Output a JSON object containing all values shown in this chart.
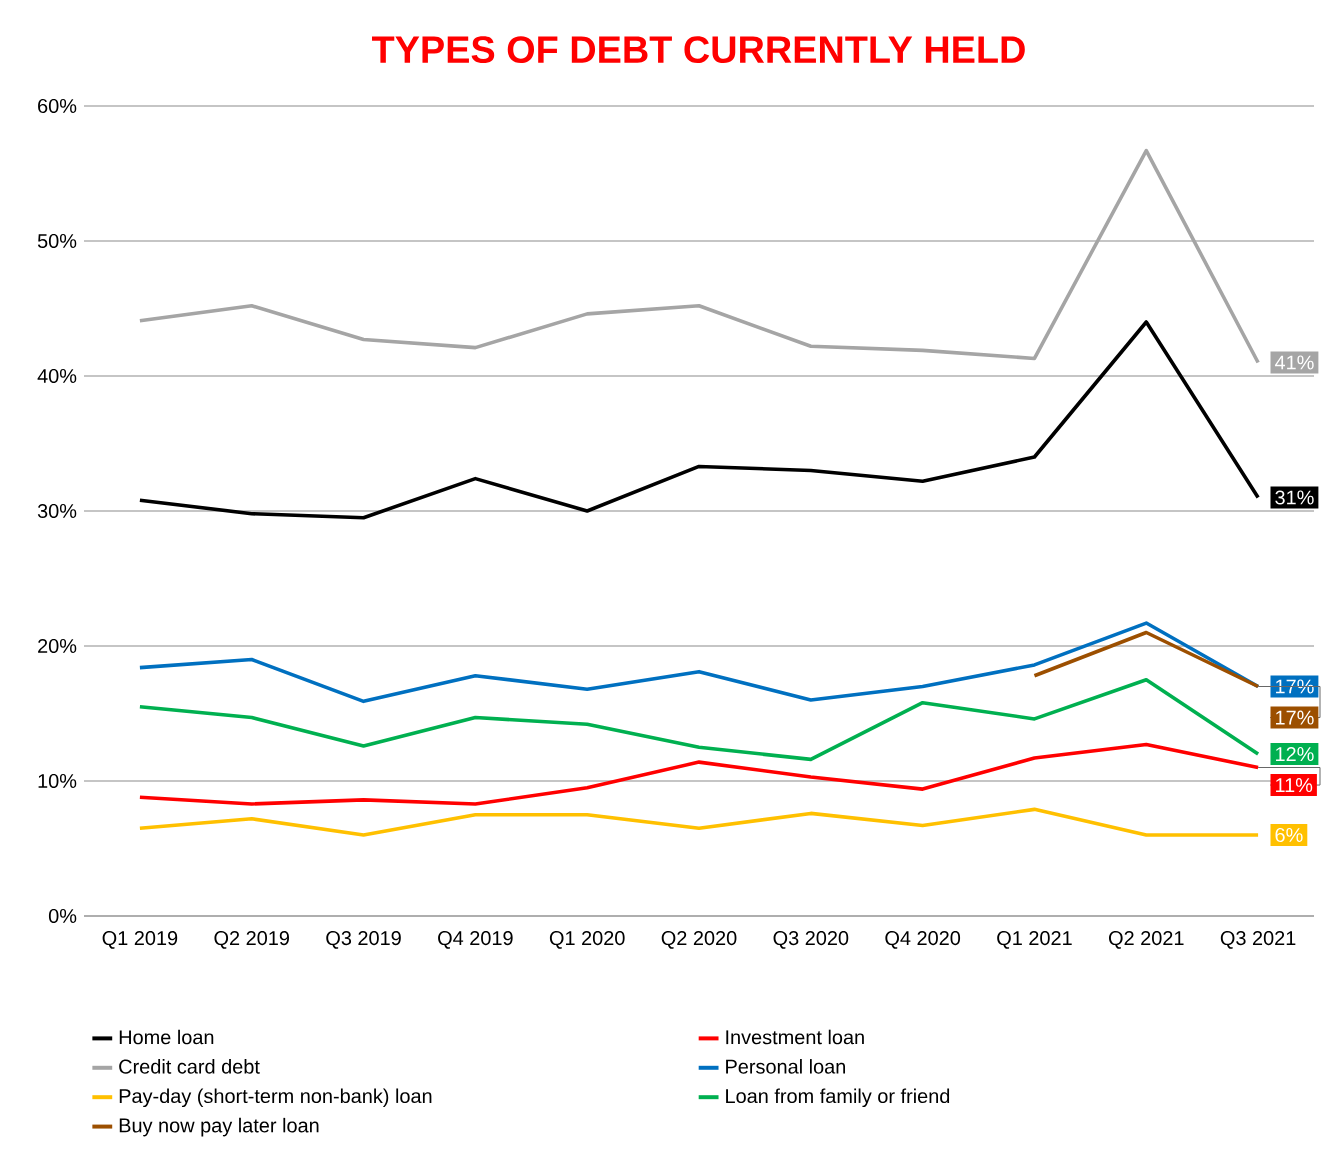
{
  "chart_data": {
    "type": "line",
    "title": "TYPES OF DEBT CURRENTLY HELD",
    "categories": [
      "Q1 2019",
      "Q2 2019",
      "Q3 2019",
      "Q4 2019",
      "Q1 2020",
      "Q2 2020",
      "Q3 2020",
      "Q4 2020",
      "Q1 2021",
      "Q2 2021",
      "Q3 2021"
    ],
    "series": [
      {
        "name": "Home loan",
        "color": "#000000",
        "values": [
          30.8,
          29.8,
          29.5,
          32.4,
          30.0,
          33.3,
          33.0,
          32.2,
          34.0,
          44.0,
          31
        ],
        "value_labels": [
          null,
          null,
          null,
          null,
          null,
          null,
          null,
          null,
          null,
          null,
          "31%"
        ]
      },
      {
        "name": "Investment loan",
        "color": "#ff0000",
        "values": [
          8.8,
          8.3,
          8.6,
          8.3,
          9.5,
          11.4,
          10.3,
          9.4,
          11.7,
          12.7,
          11
        ],
        "value_labels": [
          null,
          null,
          null,
          null,
          null,
          null,
          null,
          null,
          null,
          null,
          "11%"
        ]
      },
      {
        "name": "Credit card debt",
        "color": "#a5a5a5",
        "values": [
          44.1,
          45.2,
          42.7,
          42.1,
          44.6,
          45.2,
          42.2,
          41.9,
          41.3,
          56.7,
          41
        ],
        "value_labels": [
          null,
          null,
          null,
          null,
          null,
          null,
          null,
          null,
          null,
          null,
          "41%"
        ]
      },
      {
        "name": "Personal loan",
        "color": "#0070c0",
        "values": [
          18.4,
          19.0,
          15.9,
          17.8,
          16.8,
          18.1,
          16.0,
          17.0,
          18.6,
          21.7,
          17
        ],
        "value_labels": [
          null,
          null,
          null,
          null,
          null,
          null,
          null,
          null,
          null,
          null,
          "17%"
        ]
      },
      {
        "name": "Pay-day (short-term non-bank) loan",
        "color": "#ffc000",
        "values": [
          6.5,
          7.2,
          6.0,
          7.5,
          7.5,
          6.5,
          7.6,
          6.7,
          7.9,
          6.0,
          6
        ],
        "value_labels": [
          null,
          null,
          null,
          null,
          null,
          null,
          null,
          null,
          null,
          null,
          "6%"
        ]
      },
      {
        "name": "Loan from family or friend",
        "color": "#00b050",
        "values": [
          15.5,
          14.7,
          12.6,
          14.7,
          14.2,
          12.5,
          11.6,
          15.8,
          14.6,
          17.5,
          12
        ],
        "value_labels": [
          null,
          null,
          null,
          null,
          null,
          null,
          null,
          null,
          null,
          null,
          "12%"
        ]
      },
      {
        "name": "Buy now pay later loan",
        "color": "#9c4f00",
        "values": [
          null,
          null,
          null,
          null,
          null,
          null,
          null,
          null,
          17.8,
          21.0,
          17
        ],
        "value_labels": [
          null,
          null,
          null,
          null,
          null,
          null,
          null,
          null,
          null,
          null,
          "17%"
        ]
      }
    ],
    "ylim": [
      0,
      60
    ],
    "yticks": [
      {
        "value": 0,
        "label": "0%"
      },
      {
        "value": 10,
        "label": "10%"
      },
      {
        "value": 20,
        "label": "20%"
      },
      {
        "value": 30,
        "label": "30%"
      },
      {
        "value": 40,
        "label": "40%"
      },
      {
        "value": 50,
        "label": "50%"
      },
      {
        "value": 60,
        "label": "60%"
      }
    ],
    "grid": "y",
    "legend": "bottom",
    "marker": "none",
    "line_style": "solid"
  }
}
